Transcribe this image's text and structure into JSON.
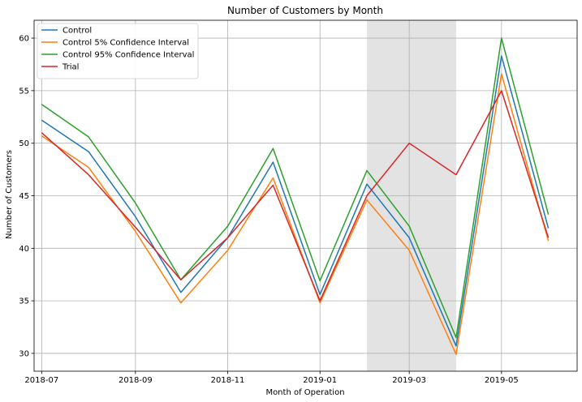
{
  "chart_data": {
    "type": "line",
    "title": "Number of Customers by Month",
    "xlabel": "Month of Operation",
    "ylabel": "Number of Customers",
    "x": [
      "2018-07",
      "2018-08",
      "2018-09",
      "2018-10",
      "2018-11",
      "2018-12",
      "2019-01",
      "2019-02",
      "2019-03",
      "2019-04",
      "2019-05",
      "2019-06"
    ],
    "x_tick_labels": [
      "2018-07",
      "2018-09",
      "2018-11",
      "2019-01",
      "2019-03",
      "2019-05"
    ],
    "y_ticks": [
      30,
      35,
      40,
      45,
      50,
      55,
      60
    ],
    "ylim": [
      28.3,
      61.7
    ],
    "xlim": [
      "2018-06-26",
      "2019-06-20"
    ],
    "grid": true,
    "legend_position": "upper-left",
    "shaded_region": {
      "start": "2019-02",
      "end": "2019-04",
      "color": "#e3e3e3"
    },
    "series": [
      {
        "name": "Control",
        "color": "#1f77b4",
        "values": [
          52.2,
          49.2,
          43.0,
          35.8,
          41.0,
          48.2,
          35.6,
          46.1,
          41.0,
          30.7,
          58.3,
          41.9
        ]
      },
      {
        "name": "Control 5% Confidence Interval",
        "color": "#ff7f0e",
        "values": [
          50.7,
          47.7,
          41.6,
          34.8,
          39.8,
          46.7,
          34.8,
          44.6,
          39.8,
          29.9,
          56.6,
          40.7
        ]
      },
      {
        "name": "Control 95% Confidence Interval",
        "color": "#2ca02c",
        "values": [
          53.7,
          50.6,
          44.3,
          37.0,
          42.1,
          49.5,
          36.9,
          47.4,
          42.1,
          31.5,
          60.0,
          43.2
        ]
      },
      {
        "name": "Trial",
        "color": "#d62728",
        "values": [
          51.0,
          47.0,
          42.0,
          37.0,
          41.0,
          46.0,
          35.0,
          45.0,
          50.0,
          47.0,
          55.0,
          41.0
        ]
      }
    ]
  }
}
